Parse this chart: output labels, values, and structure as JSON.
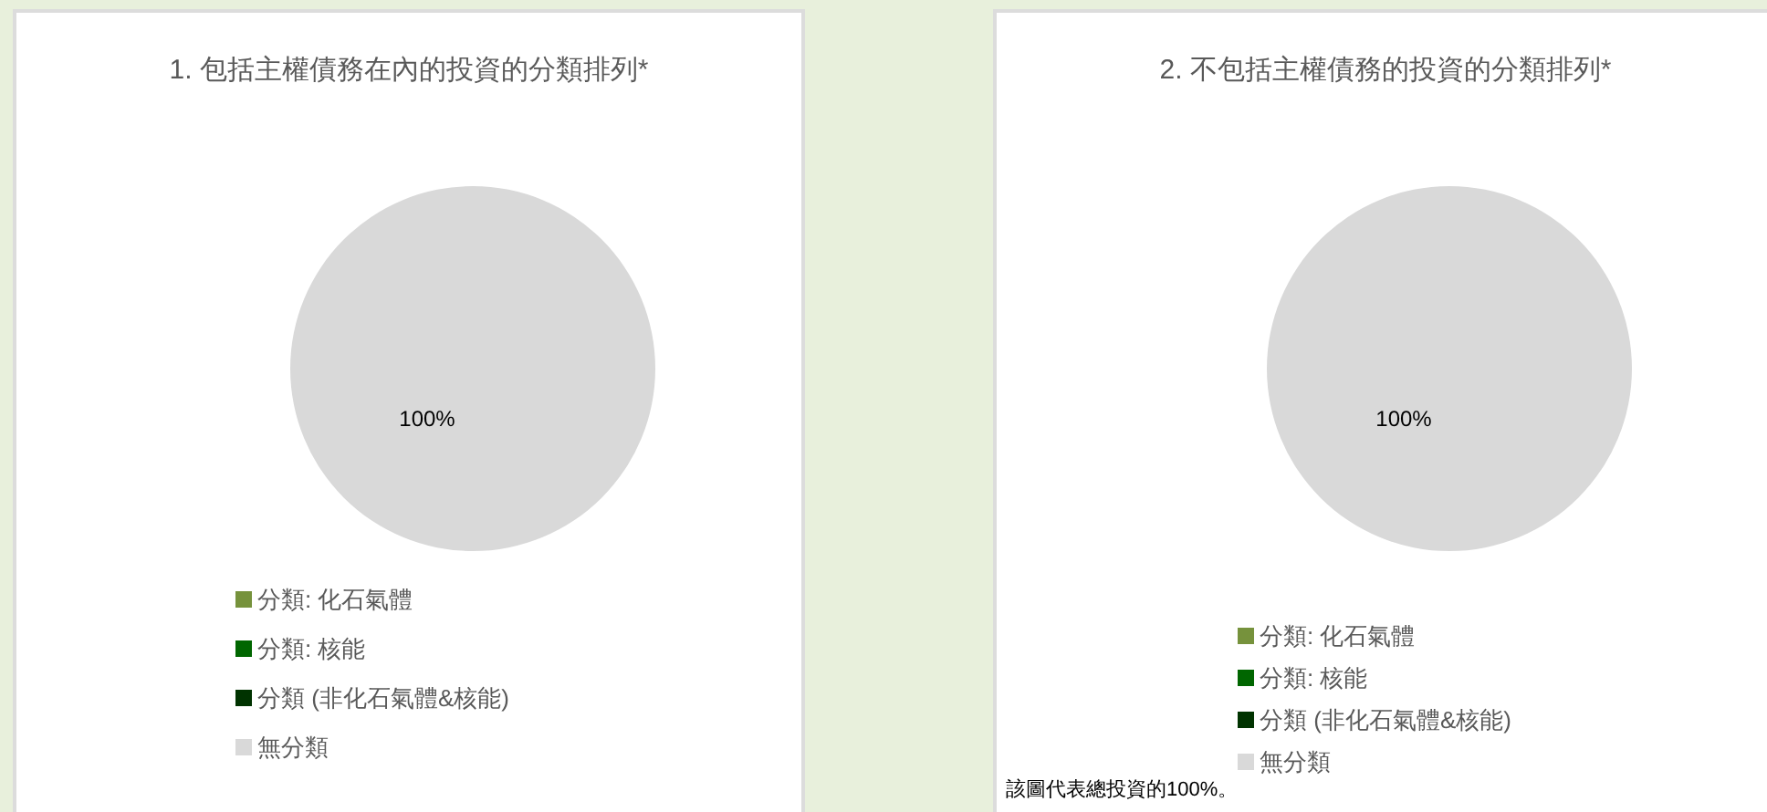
{
  "chart_data": [
    {
      "type": "pie",
      "title": "1. 包括主權債務在內的投資的分類排列*",
      "categories": [
        "分類: 化石氣體",
        "分類: 核能",
        "分類 (非化石氣體&核能)",
        "無分類"
      ],
      "values": [
        0,
        0,
        0,
        100
      ],
      "colors": [
        "#76923c",
        "#006600",
        "#003300",
        "#d9d9d9"
      ],
      "value_labels": [
        null,
        null,
        null,
        "100%"
      ],
      "legend": "bottom"
    },
    {
      "type": "pie",
      "title": "2. 不包括主權債務的投資的分類排列*",
      "categories": [
        "分類: 化石氣體",
        "分類: 核能",
        "分類 (非化石氣體&核能)",
        "無分類"
      ],
      "values": [
        0,
        0,
        0,
        100
      ],
      "colors": [
        "#76923c",
        "#006600",
        "#003300",
        "#d9d9d9"
      ],
      "value_labels": [
        null,
        null,
        null,
        "100%"
      ],
      "legend": "bottom",
      "annotations": [
        "該圖代表總投資的100%。"
      ]
    }
  ]
}
